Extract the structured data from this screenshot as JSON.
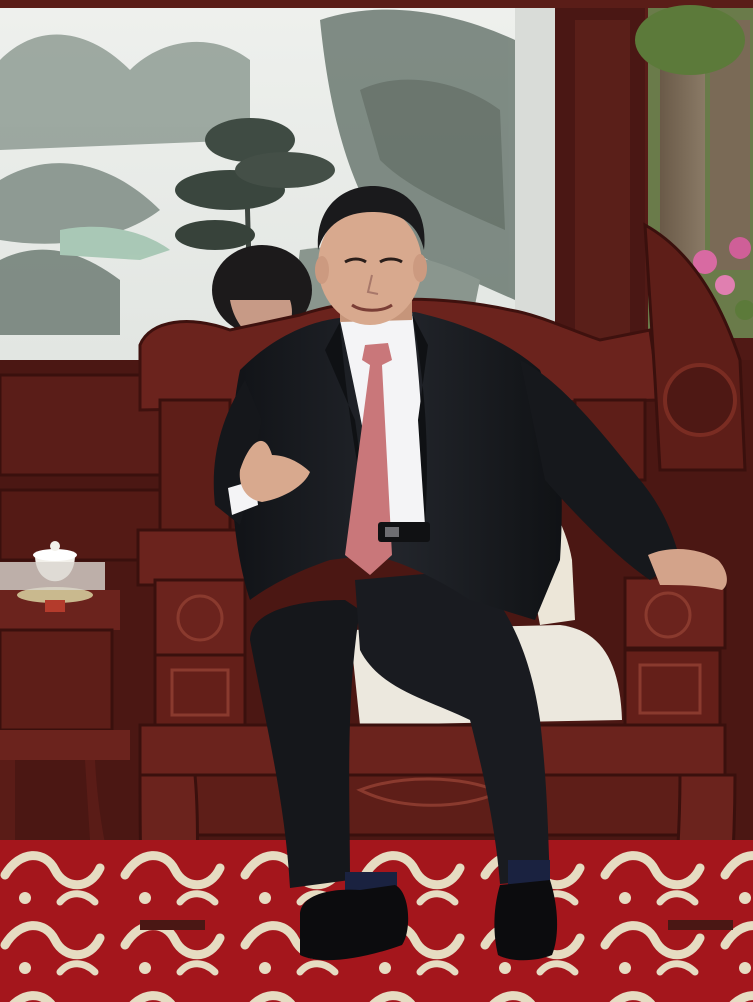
{
  "image": {
    "kind": "photograph",
    "colors": {
      "painting_paper": "#e9ece8",
      "painting_ink": "#5f6d66",
      "wood_dark": "#4a1714",
      "wood_mid": "#6b231d",
      "wood_light": "#8a3a2e",
      "carpet_red": "#a4161c",
      "carpet_pattern": "#e6dcc2",
      "suit": "#17191d",
      "shirt": "#f4f4f6",
      "tie": "#c9777a",
      "skin": "#d8a98e",
      "hair": "#1a1a1c",
      "cushion": "#ece8de",
      "foliage": "#5c7a3a",
      "flowers": "#d86aa2",
      "shoes": "#0c0c0e"
    }
  }
}
